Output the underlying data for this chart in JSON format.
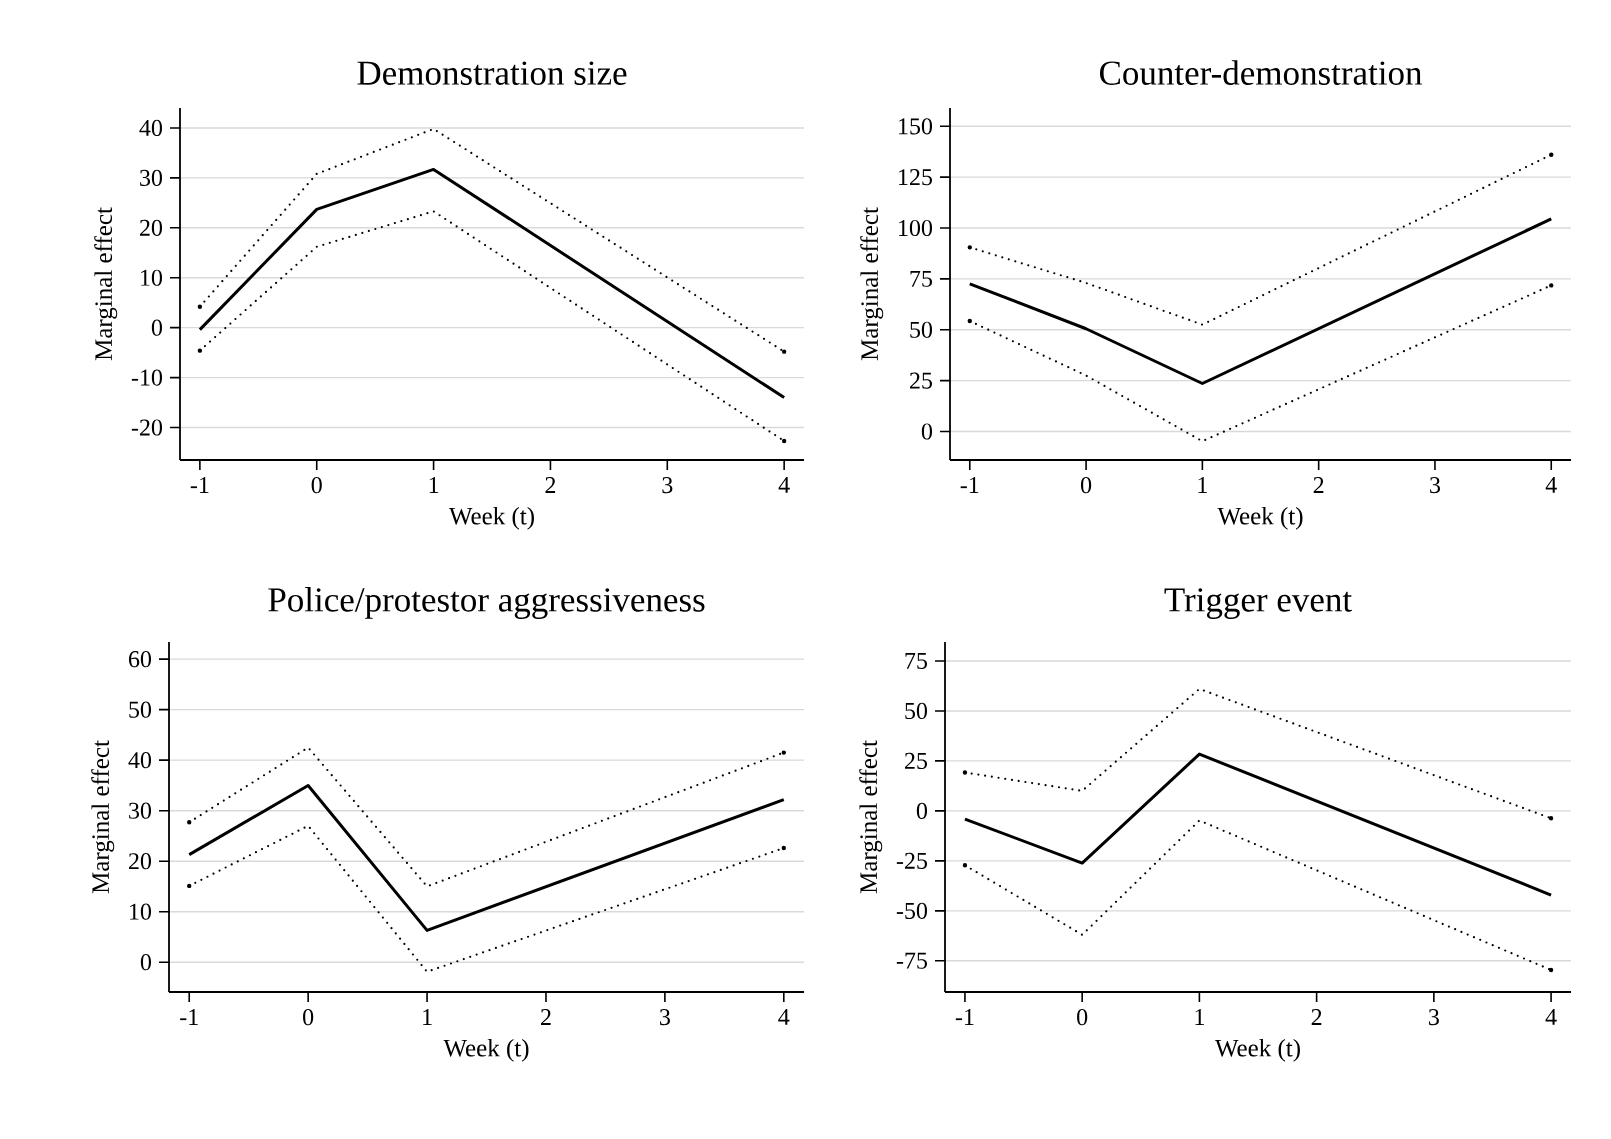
{
  "chart_data": [
    {
      "type": "line",
      "title": "Demonstration size",
      "xlabel": "Week (t)",
      "ylabel": "Marginal effect",
      "x": [
        -1,
        0,
        1,
        4
      ],
      "xlim": [
        -1.17,
        4.17
      ],
      "xticks": [
        -1,
        0,
        1,
        2,
        3,
        4
      ],
      "ylim": [
        -26.5,
        44
      ],
      "yticks": [
        -20,
        -10,
        0,
        10,
        20,
        30,
        40
      ],
      "grid": "y",
      "series": [
        {
          "color": "#000000",
          "line_style": "dotted",
          "values": [
            4.2,
            30.8,
            39.8,
            -4.8
          ]
        },
        {
          "color": "#000000",
          "line_style": "solid",
          "values": [
            -0.4,
            23.7,
            31.7,
            -14
          ]
        },
        {
          "color": "#000000",
          "line_style": "dotted",
          "values": [
            -4.6,
            16.2,
            23.3,
            -22.7
          ]
        }
      ]
    },
    {
      "type": "line",
      "title": "Counter-demonstration",
      "xlabel": "Week (t)",
      "ylabel": "Marginal effect",
      "x": [
        -1,
        0,
        1,
        4
      ],
      "xlim": [
        -1.17,
        4.17
      ],
      "xticks": [
        -1,
        0,
        1,
        2,
        3,
        4
      ],
      "ylim": [
        -14,
        159
      ],
      "yticks": [
        0,
        25,
        50,
        75,
        100,
        125,
        150
      ],
      "grid": "y",
      "series": [
        {
          "color": "#000000",
          "line_style": "dotted",
          "values": [
            90.5,
            73,
            52.5,
            136
          ]
        },
        {
          "color": "#000000",
          "line_style": "solid",
          "values": [
            72.6,
            50.5,
            23.6,
            104.5
          ]
        },
        {
          "color": "#000000",
          "line_style": "dotted",
          "values": [
            54.3,
            27.5,
            -4.8,
            71.8
          ]
        }
      ]
    },
    {
      "type": "line",
      "title": "Police/protestor aggressiveness",
      "xlabel": "Week (t)",
      "ylabel": "Marginal effect",
      "x": [
        -1,
        0,
        1,
        4
      ],
      "xlim": [
        -1.17,
        4.17
      ],
      "xticks": [
        -1,
        0,
        1,
        2,
        3,
        4
      ],
      "ylim": [
        -5.9,
        63.4
      ],
      "yticks": [
        0,
        10,
        20,
        30,
        40,
        50,
        60
      ],
      "grid": "y",
      "series": [
        {
          "color": "#000000",
          "line_style": "dotted",
          "values": [
            27.7,
            42.5,
            15,
            41.5
          ]
        },
        {
          "color": "#000000",
          "line_style": "solid",
          "values": [
            21.3,
            35,
            6.3,
            32.2
          ]
        },
        {
          "color": "#000000",
          "line_style": "dotted",
          "values": [
            15.1,
            27,
            -1.9,
            22.6
          ]
        }
      ]
    },
    {
      "type": "line",
      "title": "Trigger event",
      "xlabel": "Week (t)",
      "ylabel": "Marginal effect",
      "x": [
        -1,
        0,
        1,
        4
      ],
      "xlim": [
        -1.17,
        4.17
      ],
      "xticks": [
        -1,
        0,
        1,
        2,
        3,
        4
      ],
      "ylim": [
        -90.6,
        84.5
      ],
      "yticks": [
        -75,
        -50,
        -25,
        0,
        25,
        50,
        75
      ],
      "grid": "y",
      "series": [
        {
          "color": "#000000",
          "line_style": "dotted",
          "values": [
            19.2,
            10,
            61,
            -3.7
          ]
        },
        {
          "color": "#000000",
          "line_style": "solid",
          "values": [
            -4.1,
            -26.1,
            28.4,
            -42.1
          ]
        },
        {
          "color": "#000000",
          "line_style": "dotted",
          "values": [
            -27.2,
            -62,
            -4.8,
            -79.6
          ]
        }
      ]
    }
  ]
}
